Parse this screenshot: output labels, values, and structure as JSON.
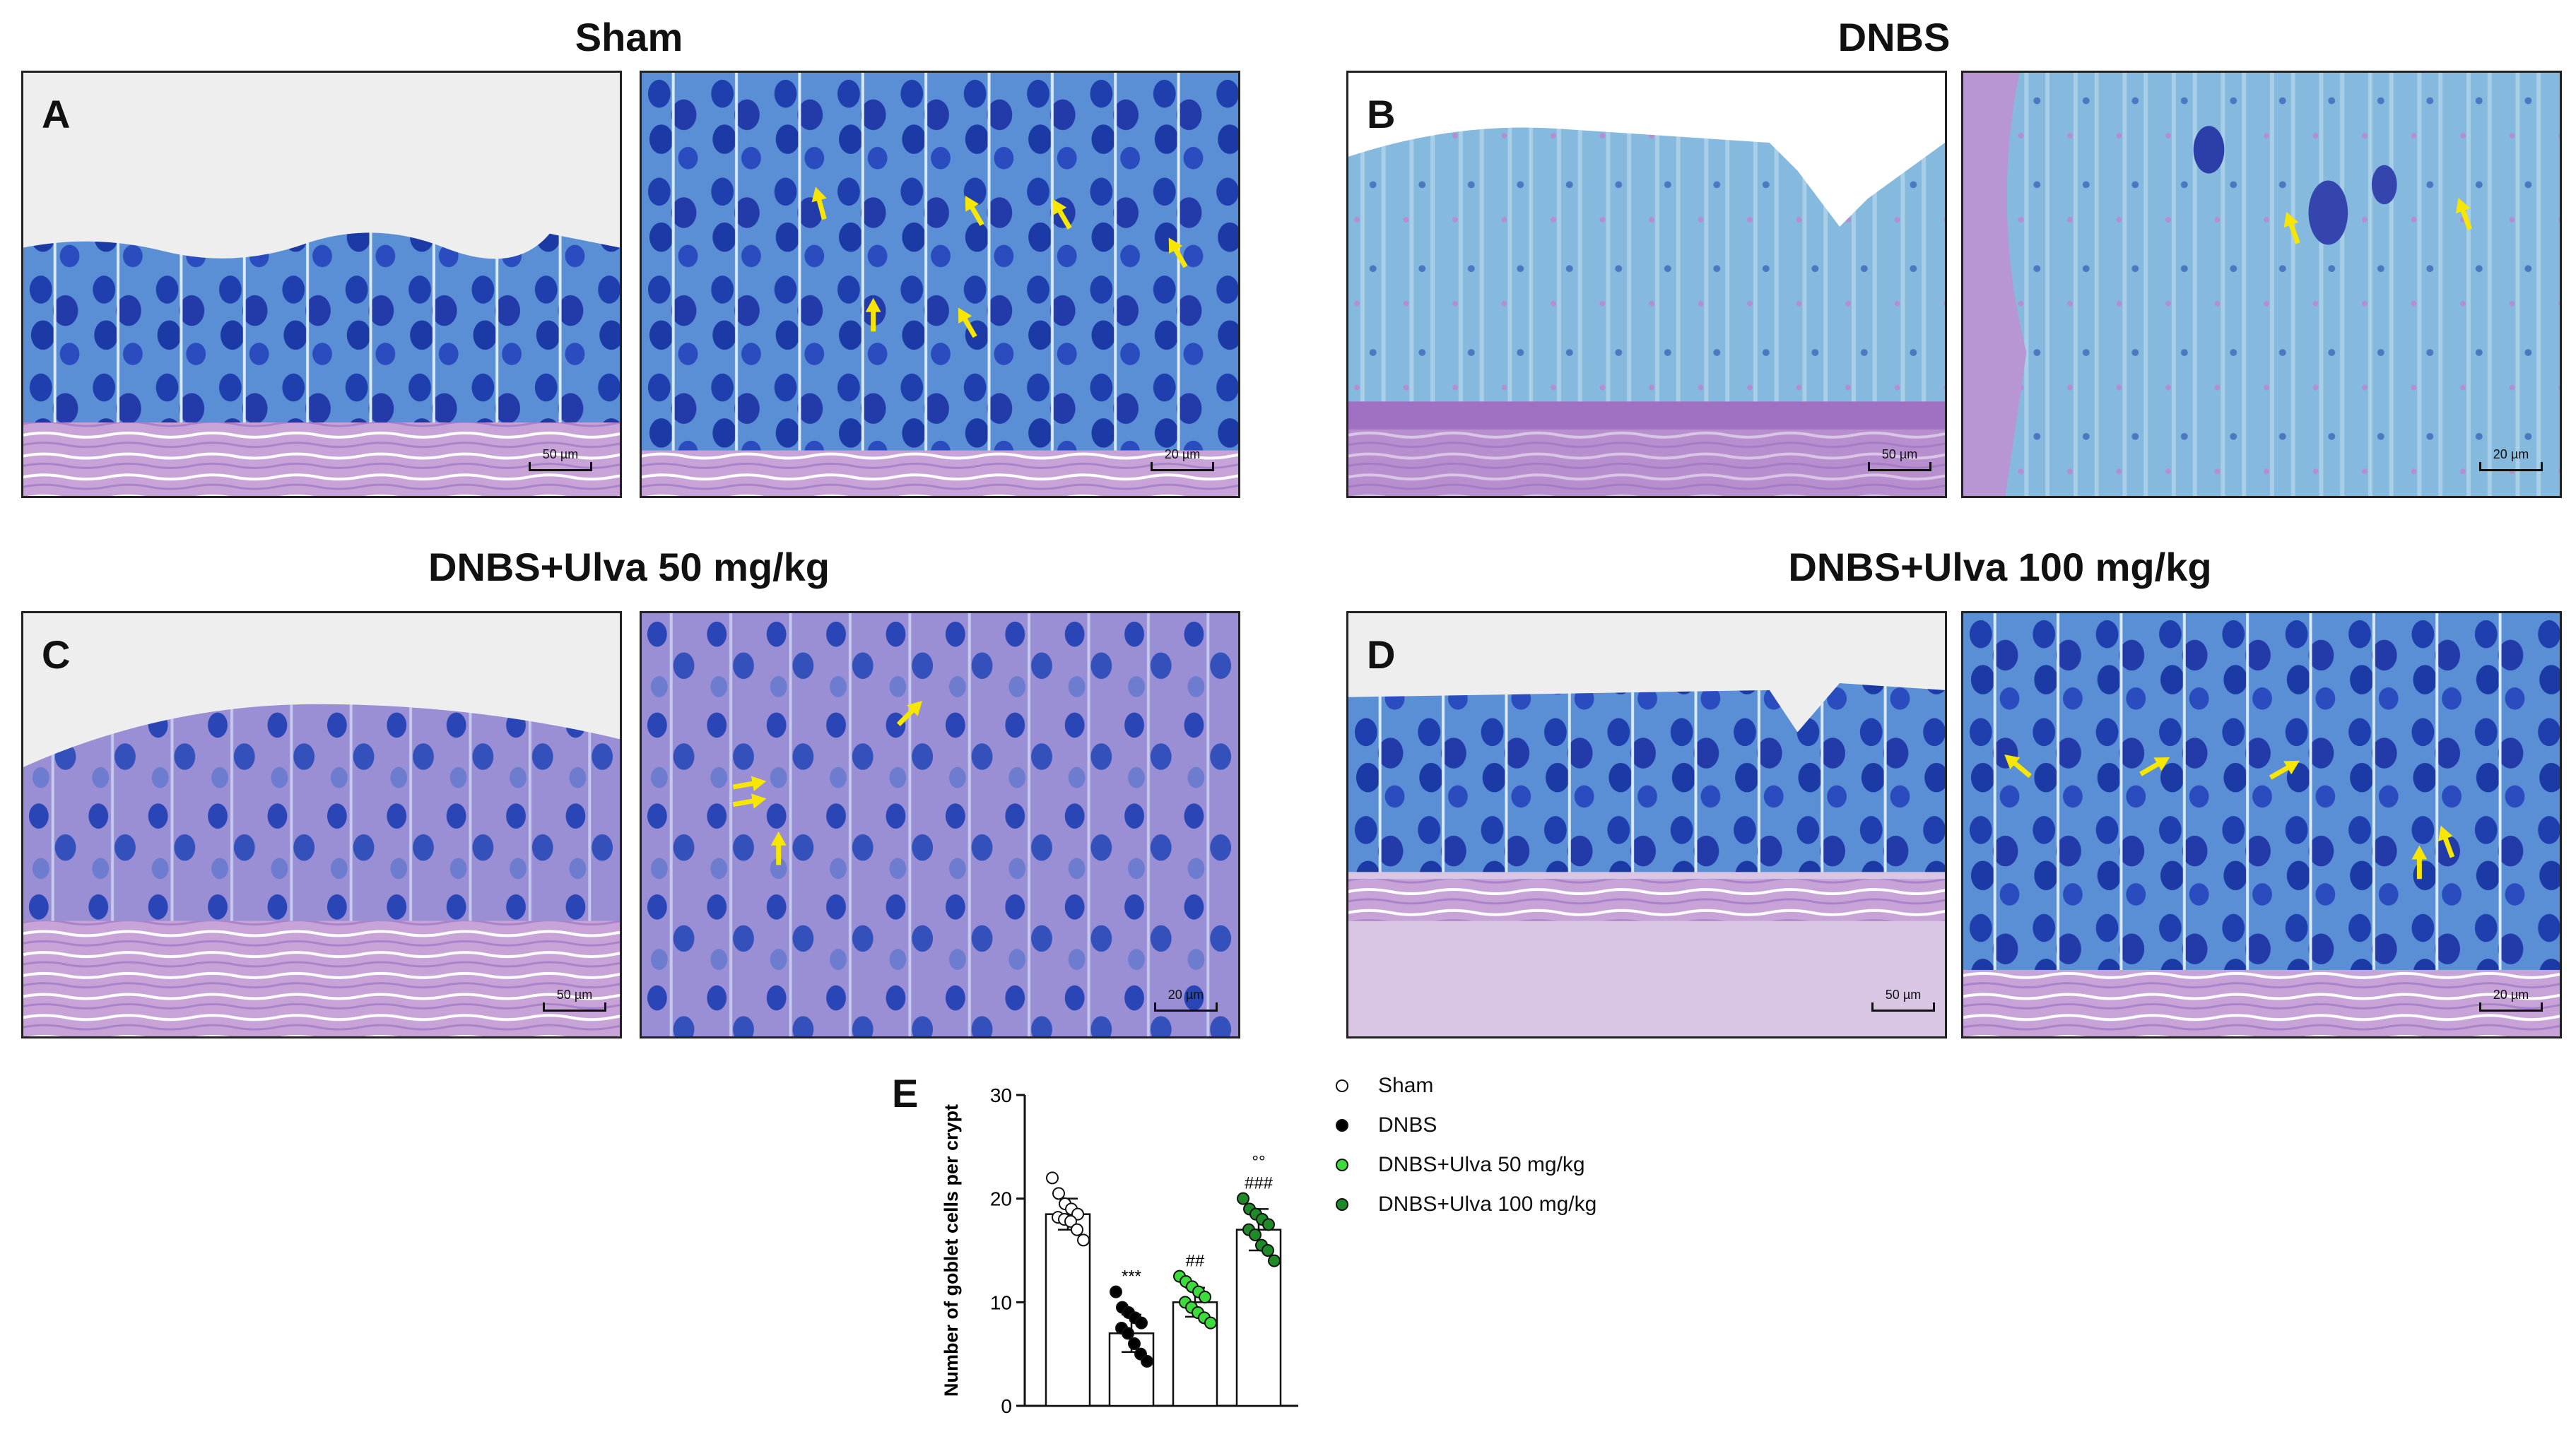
{
  "figure": {
    "groups": [
      {
        "title": "Sham",
        "letter": "A"
      },
      {
        "title": "DNBS",
        "letter": "B"
      },
      {
        "title": "DNBS+Ulva 50 mg/kg",
        "letter": "C"
      },
      {
        "title": "DNBS+Ulva 100 mg/kg",
        "letter": "D"
      }
    ],
    "scale_low": "50 µm",
    "scale_high": "20 µm",
    "chart_letter": "E"
  },
  "colors": {
    "tissue_blue": "#2f55c8",
    "tissue_light": "#7fb6df",
    "tissue_pink": "#c79ad6",
    "arrow": "#f6e600",
    "ulva50": "#3bdc3b",
    "ulva100": "#1e8a28"
  },
  "chart_data": {
    "type": "bar",
    "ylabel": "Number of goblet cells per crypt",
    "ylim": [
      0,
      30
    ],
    "yticks": [
      0,
      10,
      20,
      30
    ],
    "series": [
      {
        "name": "Sham",
        "mean": 18.5,
        "sd": 1.5,
        "fill": "#ffffff",
        "points": [
          22,
          20.5,
          19.5,
          19,
          18.5,
          18.2,
          18,
          17.8,
          17,
          16
        ],
        "annotation": ""
      },
      {
        "name": "DNBS",
        "mean": 7,
        "sd": 1.8,
        "fill": "#000000",
        "points": [
          11,
          9.5,
          9,
          8.5,
          8,
          7.5,
          7,
          6,
          5,
          4.3
        ],
        "annotation": "***"
      },
      {
        "name": "DNBS+Ulva 50 mg/kg",
        "mean": 10,
        "sd": 1.4,
        "fill": "#3bdc3b",
        "points": [
          12.5,
          12,
          11.5,
          11,
          10.5,
          10,
          9.5,
          9,
          8.5,
          8
        ],
        "annotation": "##"
      },
      {
        "name": "DNBS+Ulva 100 mg/kg",
        "mean": 17,
        "sd": 2.0,
        "fill": "#1e8a28",
        "points": [
          20,
          19,
          18.5,
          18,
          17.5,
          17,
          16.5,
          15.5,
          15,
          14
        ],
        "annotation": "###",
        "annotation2": "°°"
      }
    ]
  }
}
